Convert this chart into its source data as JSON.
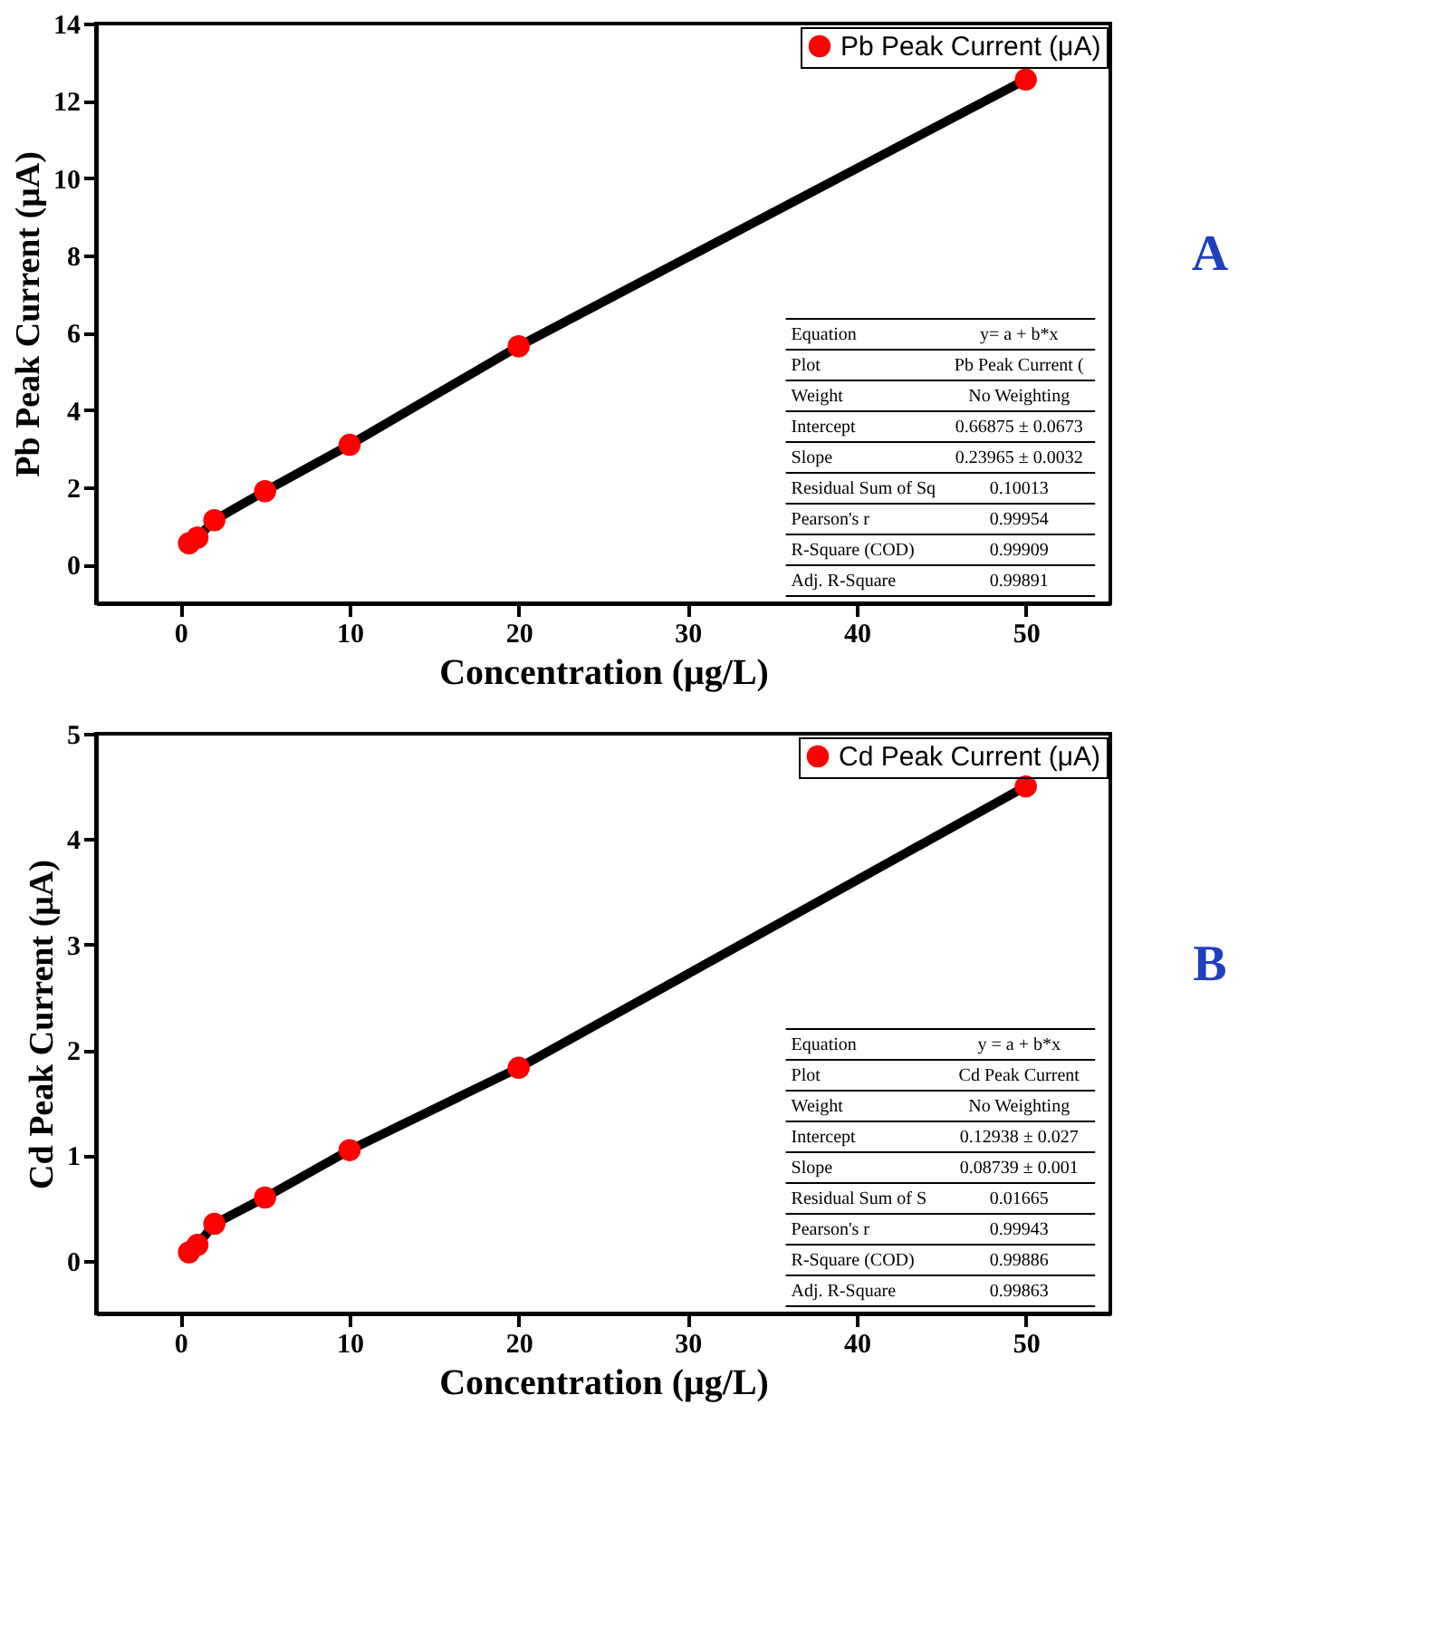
{
  "chart_data": [
    {
      "type": "line",
      "xlabel": "Concentration (μg/L)",
      "ylabel": "Pb Peak Current (μA)",
      "x": [
        0.5,
        1,
        2,
        5,
        10,
        20,
        50
      ],
      "series": [
        {
          "name": "Pb Peak Current (μA)",
          "color": "#ff0000",
          "values": [
            0.55,
            0.7,
            1.15,
            1.9,
            3.1,
            5.65,
            12.55
          ]
        }
      ],
      "xlim": [
        -5,
        55
      ],
      "xticks": [
        0,
        10,
        20,
        30,
        40,
        50
      ],
      "ylim": [
        -1,
        14
      ],
      "yticks": [
        0,
        2,
        4,
        6,
        8,
        10,
        12,
        14
      ],
      "marker": "circle",
      "line_style": "solid",
      "legend": "top right",
      "grid": false,
      "annotations": [
        "Equation",
        "y= a + b*x",
        "Plot",
        "Pb Peak Current (",
        "Weight",
        "No Weighting",
        "Intercept",
        "0.66875 ± 0.0673",
        "Slope",
        "0.23965 ± 0.0032",
        "Residual Sum of Sq",
        "0.10013",
        "Pearson's r",
        "0.99954",
        "R-Square (COD)",
        "0.99909",
        "Adj. R-Square",
        "0.99891",
        "A"
      ]
    },
    {
      "type": "line",
      "xlabel": "Concentration (μg/L)",
      "ylabel": "Cd Peak Current (μA)",
      "x": [
        0.5,
        1,
        2,
        5,
        10,
        20,
        50
      ],
      "series": [
        {
          "name": "Cd Peak Current (μA)",
          "color": "#ff0000",
          "values": [
            0.08,
            0.15,
            0.35,
            0.6,
            1.05,
            1.83,
            4.5
          ]
        }
      ],
      "xlim": [
        -5,
        55
      ],
      "xticks": [
        0,
        10,
        20,
        30,
        40,
        50
      ],
      "ylim": [
        -0.5,
        5
      ],
      "yticks": [
        0,
        1,
        2,
        3,
        4,
        5
      ],
      "marker": "circle",
      "line_style": "solid",
      "legend": "top right",
      "grid": false,
      "annotations": [
        "Equation",
        "y = a + b*x",
        "Plot",
        "Cd Peak Current",
        "Weight",
        "No Weighting",
        "Intercept",
        "0.12938 ± 0.027",
        "Slope",
        "0.08739 ± 0.001",
        "Residual Sum of S",
        "0.01665",
        "Pearson's r",
        "0.99943",
        "R-Square (COD)",
        "0.99886",
        "Adj. R-Square",
        "0.99863",
        "B"
      ]
    }
  ]
}
